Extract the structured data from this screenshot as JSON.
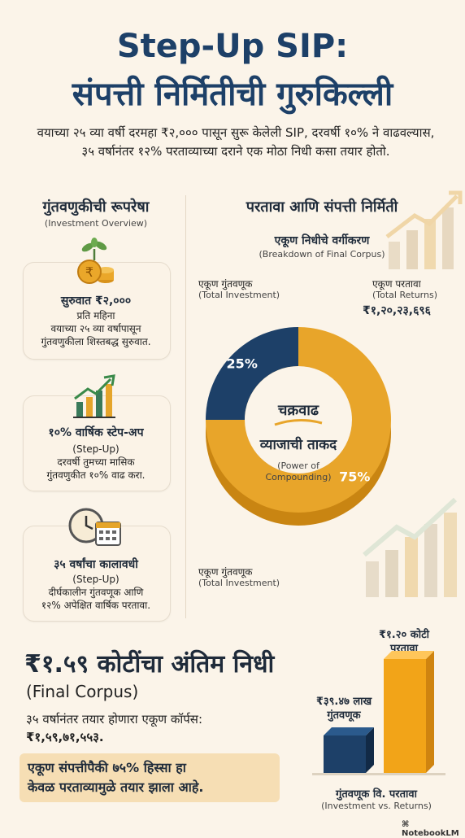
{
  "header": {
    "title_line1": "Step-Up SIP:",
    "title_line2": "संपत्ती निर्मितीची गुरुकिल्ली",
    "subtitle": "वयाच्या २५ व्या वर्षी दरमहा ₹२,००० पासून सुरू केलेली SIP, दरवर्षी १०% ने वाढवल्यास, ३५ वर्षानंतर १२% परताव्याच्या दराने एक मोठा निधी कसा तयार होतो."
  },
  "left": {
    "heading": "गुंतवणुकीची रूपरेषा",
    "heading_en": "(Investment Overview)",
    "cards": [
      {
        "icon": "coin-plant-icon",
        "title": "सुरुवात ₹२,०००",
        "line1": "प्रति महिना",
        "line2": "वयाच्या २५ व्या वर्षापासून",
        "line3": "गुंतवणुकीला शिस्तबद्ध सुरुवात."
      },
      {
        "icon": "growth-chart-icon",
        "title": "१०% वार्षिक स्टेप-अप",
        "line1": "(Step-Up)",
        "line2": "दरवर्षी तुमच्या मासिक",
        "line3": "गुंतवणुकीत १०% वाढ करा."
      },
      {
        "icon": "clock-calendar-icon",
        "title": "३५ वर्षांचा कालावधी",
        "line1": "(Step-Up)",
        "line2": "दीर्घकालीन गुंतवणूक आणि",
        "line3": "१२% अपेक्षित वार्षिक परतावा."
      }
    ]
  },
  "right": {
    "heading": "परतावा आणि संपत्ती निर्मिती",
    "sub_heading": "एकूण निधीचे वर्गीकरण",
    "sub_heading_en": "(Breakdown of Final Corpus)",
    "top_left_label": "एकूण गुंतवणूक",
    "top_left_label_en": "(Total Investment)",
    "top_right_label": "एकूण परतावा",
    "top_right_label_en": "(Total Returns)",
    "top_right_value": "₹१,२०,२३,६९६",
    "bottom_label": "एकूण गुंतवणूक",
    "bottom_label_en": "(Total Investment)",
    "center_line1": "चक्रवाढ",
    "center_line2": "व्याजाची ताकद",
    "center_en1": "(Power of",
    "center_en2": "Compounding)"
  },
  "chart_data": [
    {
      "type": "pie",
      "categories": [
        "एकूण गुंतवणूक",
        "एकूण परतावा"
      ],
      "values": [
        25,
        75
      ],
      "data_labels": [
        "25%",
        "75%"
      ],
      "colors": [
        "#1d4068",
        "#e8a52a"
      ]
    },
    {
      "type": "bar",
      "categories": [
        "गुंतवणूक",
        "परतावा"
      ],
      "values": [
        0.3947,
        1.2
      ],
      "data_labels": [
        "₹३९.४७ लाख गुंतवणूक",
        "₹१.२० कोटी परतावा"
      ],
      "colors": [
        "#1d4068",
        "#f2a418"
      ]
    }
  ],
  "bottom": {
    "big_title": "₹१.५९ कोटींचा अंतिम निधी",
    "big_title_en": "(Final Corpus)",
    "line1": "३५ वर्षानंतर तयार होणारा एकूण कॉर्पस:",
    "line2": "₹१,५९,७१,५५३.",
    "highlight1": "एकूण संपत्तीपैकी ७५% हिस्सा हा",
    "highlight2": "केवळ परताव्यामुळे तयार झाला आहे.",
    "bar_label_top1": "₹१.२० कोटी",
    "bar_label_top2": "परतावा",
    "bar_label_left1": "₹३९.४७ लाख",
    "bar_label_left2": "गुंतवणूक",
    "caption": "गुंतवणूक वि. परतावा",
    "caption_en": "(Investment vs. Returns)"
  },
  "footer": {
    "brand": "NotebookLM"
  }
}
